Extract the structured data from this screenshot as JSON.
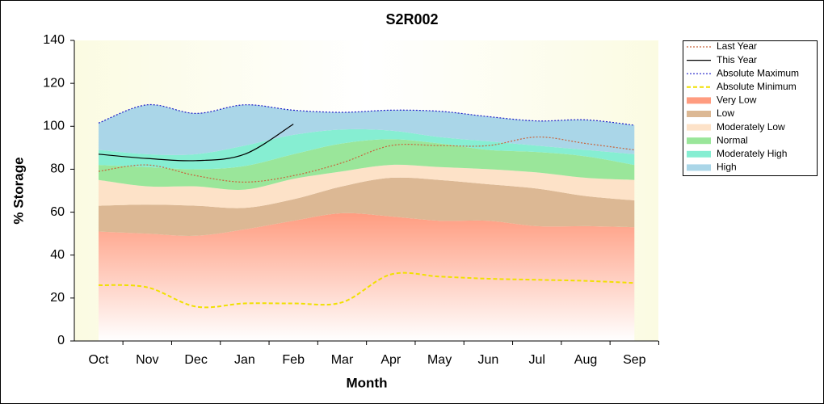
{
  "chart_data": {
    "type": "area",
    "title": "S2R002",
    "x_label": "Month",
    "y_label": "% Storage",
    "categories": [
      "Oct",
      "Nov",
      "Dec",
      "Jan",
      "Feb",
      "Mar",
      "Apr",
      "May",
      "Jun",
      "Jul",
      "Aug",
      "Sep"
    ],
    "ylim": [
      0,
      140
    ],
    "yticks": [
      0,
      20,
      40,
      60,
      80,
      100,
      120,
      140
    ],
    "series": [
      {
        "name": "Last Year",
        "kind": "line",
        "color": "#c8643c",
        "dash": "2,2",
        "values": [
          79,
          82,
          77,
          74,
          77,
          83,
          91,
          91,
          91,
          95,
          92,
          89
        ]
      },
      {
        "name": "This Year",
        "kind": "line",
        "color": "#000000",
        "dash": "none",
        "values": [
          87,
          85,
          84,
          87,
          101,
          null,
          null,
          null,
          null,
          null,
          null,
          null
        ]
      },
      {
        "name": "Absolute Maximum",
        "kind": "line",
        "color": "#2020c8",
        "dash": "2,2",
        "values": [
          101.5,
          110,
          106,
          110,
          107.5,
          106.5,
          107.5,
          107,
          104.5,
          102.5,
          103,
          100.5
        ]
      },
      {
        "name": "Absolute Minimum",
        "kind": "line",
        "color": "#f0e000",
        "dash": "5,3",
        "values": [
          26,
          25,
          16,
          17.5,
          17.5,
          18,
          31,
          30,
          29,
          28.5,
          28,
          27
        ]
      },
      {
        "name": "Very Low",
        "kind": "band",
        "color": "#ff9c80",
        "values": [
          51,
          50,
          49,
          52,
          56,
          59.5,
          58,
          56,
          56,
          53.5,
          53.5,
          53
        ]
      },
      {
        "name": "Low",
        "kind": "band",
        "color": "#dcb894",
        "values": [
          63,
          63.5,
          63,
          62,
          66,
          72,
          76,
          75,
          73,
          71,
          67.5,
          65.5
        ]
      },
      {
        "name": "Moderately Low",
        "kind": "band",
        "color": "#fde2c8",
        "values": [
          75,
          72,
          72,
          70.5,
          75.5,
          79,
          82,
          81,
          80,
          78.5,
          76,
          75
        ]
      },
      {
        "name": "Normal",
        "kind": "band",
        "color": "#9ae69a",
        "values": [
          82,
          81,
          80,
          81.5,
          87,
          92,
          94,
          92,
          89,
          88,
          86,
          82
        ]
      },
      {
        "name": "Moderately High",
        "kind": "band",
        "color": "#86eed2",
        "values": [
          89,
          87,
          87,
          91,
          96,
          98.5,
          98,
          95,
          93,
          91,
          89,
          87
        ]
      },
      {
        "name": "High",
        "kind": "band",
        "color": "#aad6e8",
        "values": [
          101.5,
          110,
          106,
          110,
          107.5,
          106.5,
          107.5,
          107,
          104.5,
          102.5,
          103,
          100.5
        ]
      }
    ]
  }
}
